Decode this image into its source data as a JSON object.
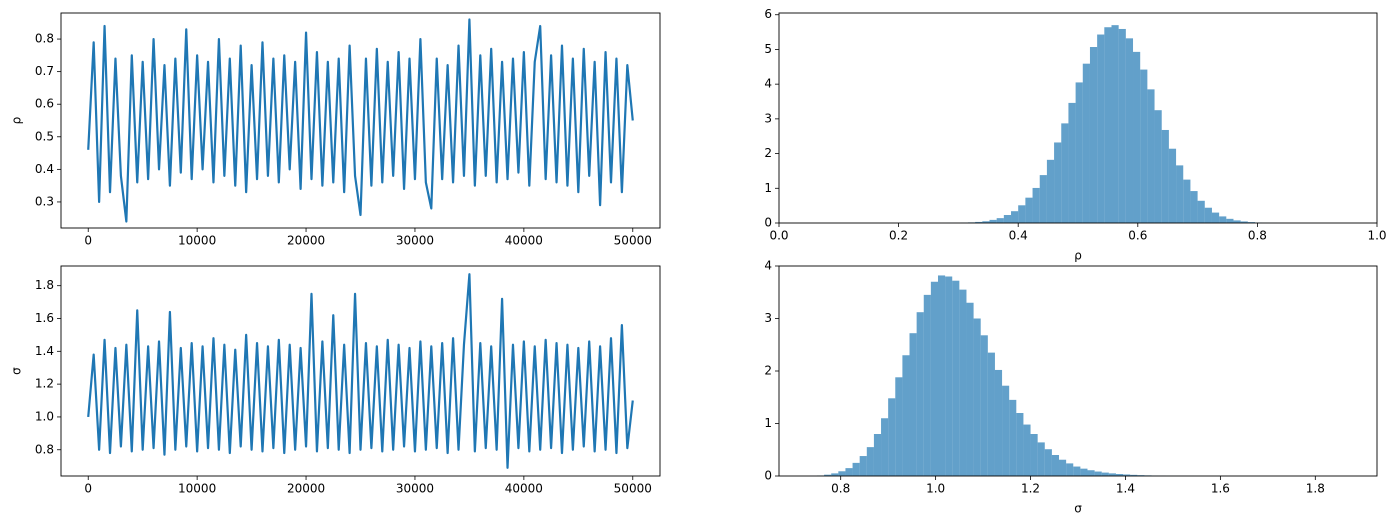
{
  "chart_data": [
    {
      "type": "line",
      "ylabel": "ρ",
      "color": "#1f77b4",
      "x": [
        0,
        500,
        1000,
        1500,
        2000,
        2500,
        3000,
        3500,
        4000,
        4500,
        5000,
        5500,
        6000,
        6500,
        7000,
        7500,
        8000,
        8500,
        9000,
        9500,
        10000,
        10500,
        11000,
        11500,
        12000,
        12500,
        13000,
        13500,
        14000,
        14500,
        15000,
        15500,
        16000,
        16500,
        17000,
        17500,
        18000,
        18500,
        19000,
        19500,
        20000,
        20500,
        21000,
        21500,
        22000,
        22500,
        23000,
        23500,
        24000,
        24500,
        25000,
        25500,
        26000,
        26500,
        27000,
        27500,
        28000,
        28500,
        29000,
        29500,
        30000,
        30500,
        31000,
        31500,
        32000,
        32500,
        33000,
        33500,
        34000,
        34500,
        35000,
        35500,
        36000,
        36500,
        37000,
        37500,
        38000,
        38500,
        39000,
        39500,
        40000,
        40500,
        41000,
        41500,
        42000,
        42500,
        43000,
        43500,
        44000,
        44500,
        45000,
        45500,
        46000,
        46500,
        47000,
        47500,
        48000,
        48500,
        49000,
        49500,
        50000
      ],
      "values": [
        0.46,
        0.79,
        0.3,
        0.84,
        0.33,
        0.74,
        0.38,
        0.24,
        0.75,
        0.36,
        0.73,
        0.37,
        0.8,
        0.4,
        0.72,
        0.35,
        0.74,
        0.39,
        0.83,
        0.37,
        0.75,
        0.4,
        0.73,
        0.36,
        0.8,
        0.38,
        0.74,
        0.35,
        0.78,
        0.33,
        0.72,
        0.37,
        0.79,
        0.38,
        0.74,
        0.36,
        0.75,
        0.4,
        0.73,
        0.34,
        0.82,
        0.37,
        0.76,
        0.35,
        0.73,
        0.36,
        0.74,
        0.33,
        0.78,
        0.38,
        0.26,
        0.74,
        0.35,
        0.77,
        0.36,
        0.73,
        0.38,
        0.76,
        0.34,
        0.74,
        0.37,
        0.8,
        0.36,
        0.28,
        0.74,
        0.37,
        0.72,
        0.36,
        0.78,
        0.38,
        0.86,
        0.35,
        0.75,
        0.38,
        0.77,
        0.36,
        0.73,
        0.37,
        0.74,
        0.39,
        0.76,
        0.35,
        0.73,
        0.84,
        0.37,
        0.75,
        0.36,
        0.78,
        0.35,
        0.74,
        0.33,
        0.77,
        0.38,
        0.73,
        0.29,
        0.76,
        0.36,
        0.74,
        0.33,
        0.72,
        0.55
      ],
      "xlim": [
        -2500,
        52500
      ],
      "xticks": [
        0,
        10000,
        20000,
        30000,
        40000,
        50000
      ],
      "ylim": [
        0.22,
        0.88
      ],
      "yticks": [
        0.3,
        0.4,
        0.5,
        0.6,
        0.7,
        0.8
      ]
    },
    {
      "type": "histogram",
      "xlabel": "ρ",
      "color": "#1f77b4",
      "bins": [
        0.28,
        0.292,
        0.304,
        0.316,
        0.328,
        0.34,
        0.352,
        0.364,
        0.376,
        0.388,
        0.4,
        0.412,
        0.424,
        0.436,
        0.448,
        0.46,
        0.472,
        0.484,
        0.496,
        0.508,
        0.52,
        0.532,
        0.544,
        0.556,
        0.568,
        0.58,
        0.592,
        0.604,
        0.616,
        0.628,
        0.64,
        0.652,
        0.664,
        0.676,
        0.688,
        0.7,
        0.712,
        0.724,
        0.736,
        0.748,
        0.76,
        0.772,
        0.784,
        0.796,
        0.808,
        0.82,
        0.832,
        0.844
      ],
      "counts": [
        0.003,
        0.005,
        0.01,
        0.018,
        0.031,
        0.05,
        0.09,
        0.14,
        0.23,
        0.34,
        0.51,
        0.73,
        1.01,
        1.38,
        1.82,
        2.32,
        2.87,
        3.46,
        4.05,
        4.59,
        5.07,
        5.43,
        5.64,
        5.7,
        5.59,
        5.32,
        4.93,
        4.42,
        3.85,
        3.25,
        2.68,
        2.14,
        1.66,
        1.25,
        0.92,
        0.64,
        0.44,
        0.3,
        0.19,
        0.12,
        0.075,
        0.045,
        0.026,
        0.014,
        0.008,
        0.004,
        0.002
      ],
      "xlim": [
        0,
        1
      ],
      "xticks": [
        {
          "value": 0,
          "label": "0.0"
        },
        0.2,
        0.4,
        0.6,
        0.8,
        {
          "value": 1,
          "label": "1.0"
        }
      ],
      "ylim": [
        0,
        6.05
      ],
      "yticks": [
        0,
        1,
        2,
        3,
        4,
        5,
        6
      ]
    },
    {
      "type": "line",
      "ylabel": "σ",
      "color": "#1f77b4",
      "x": [
        0,
        500,
        1000,
        1500,
        2000,
        2500,
        3000,
        3500,
        4000,
        4500,
        5000,
        5500,
        6000,
        6500,
        7000,
        7500,
        8000,
        8500,
        9000,
        9500,
        10000,
        10500,
        11000,
        11500,
        12000,
        12500,
        13000,
        13500,
        14000,
        14500,
        15000,
        15500,
        16000,
        16500,
        17000,
        17500,
        18000,
        18500,
        19000,
        19500,
        20000,
        20500,
        21000,
        21500,
        22000,
        22500,
        23000,
        23500,
        24000,
        24500,
        25000,
        25500,
        26000,
        26500,
        27000,
        27500,
        28000,
        28500,
        29000,
        29500,
        30000,
        30500,
        31000,
        31500,
        32000,
        32500,
        33000,
        33500,
        34000,
        34500,
        35000,
        35500,
        36000,
        36500,
        37000,
        37500,
        38000,
        38500,
        39000,
        39500,
        40000,
        40500,
        41000,
        41500,
        42000,
        42500,
        43000,
        43500,
        44000,
        44500,
        45000,
        45500,
        46000,
        46500,
        47000,
        47500,
        48000,
        48500,
        49000,
        49500,
        50000
      ],
      "values": [
        1.0,
        1.38,
        0.8,
        1.47,
        0.78,
        1.42,
        0.82,
        1.44,
        0.79,
        1.65,
        0.8,
        1.43,
        0.81,
        1.46,
        0.77,
        1.64,
        0.8,
        1.42,
        0.82,
        1.45,
        0.79,
        1.43,
        0.81,
        1.48,
        0.8,
        1.44,
        0.78,
        1.41,
        0.82,
        1.5,
        0.8,
        1.45,
        0.79,
        1.43,
        0.81,
        1.47,
        0.78,
        1.44,
        0.8,
        1.42,
        0.82,
        1.75,
        0.79,
        1.46,
        0.81,
        1.62,
        0.8,
        1.44,
        0.78,
        1.75,
        0.8,
        1.45,
        0.81,
        1.43,
        0.79,
        1.47,
        0.8,
        1.44,
        0.82,
        1.42,
        0.79,
        1.46,
        0.8,
        1.43,
        0.81,
        1.45,
        0.78,
        1.48,
        0.8,
        1.44,
        1.87,
        0.79,
        1.45,
        0.81,
        1.43,
        0.8,
        1.72,
        0.69,
        1.44,
        0.81,
        1.46,
        0.79,
        1.43,
        0.8,
        1.47,
        0.81,
        1.45,
        0.78,
        1.44,
        0.8,
        1.42,
        0.82,
        1.46,
        0.79,
        1.43,
        0.8,
        1.48,
        0.78,
        1.56,
        0.81,
        1.1
      ],
      "xlim": [
        -2500,
        52500
      ],
      "xticks": [
        0,
        10000,
        20000,
        30000,
        40000,
        50000
      ],
      "ylim": [
        0.64,
        1.92
      ],
      "yticks": [
        0.8,
        {
          "value": 1,
          "label": "1.0"
        },
        1.2,
        1.4,
        1.6,
        1.8
      ]
    },
    {
      "type": "histogram",
      "xlabel": "σ",
      "color": "#1f77b4",
      "bins": [
        0.735,
        0.75,
        0.765,
        0.78,
        0.795,
        0.81,
        0.825,
        0.84,
        0.855,
        0.87,
        0.885,
        0.9,
        0.915,
        0.93,
        0.945,
        0.96,
        0.975,
        0.99,
        1.005,
        1.02,
        1.035,
        1.05,
        1.065,
        1.08,
        1.095,
        1.11,
        1.125,
        1.14,
        1.155,
        1.17,
        1.185,
        1.2,
        1.215,
        1.23,
        1.245,
        1.26,
        1.275,
        1.29,
        1.305,
        1.32,
        1.335,
        1.35,
        1.365,
        1.38,
        1.395,
        1.41,
        1.425,
        1.44,
        1.455,
        1.47,
        1.485,
        1.5,
        1.515,
        1.53,
        1.545,
        1.56,
        1.575
      ],
      "counts": [
        0.003,
        0.01,
        0.025,
        0.05,
        0.09,
        0.15,
        0.25,
        0.38,
        0.55,
        0.8,
        1.1,
        1.48,
        1.88,
        2.3,
        2.72,
        3.12,
        3.45,
        3.7,
        3.82,
        3.8,
        3.72,
        3.55,
        3.3,
        3.0,
        2.68,
        2.35,
        2.02,
        1.72,
        1.45,
        1.2,
        0.98,
        0.8,
        0.64,
        0.51,
        0.4,
        0.31,
        0.24,
        0.18,
        0.14,
        0.11,
        0.085,
        0.065,
        0.05,
        0.038,
        0.029,
        0.022,
        0.016,
        0.012,
        0.009,
        0.007,
        0.005,
        0.004,
        0.003,
        0.002,
        0.0015,
        0.001
      ],
      "xlim": [
        0.67,
        1.93
      ],
      "xticks": [
        0.8,
        {
          "value": 1,
          "label": "1.0"
        },
        1.2,
        1.4,
        1.6,
        1.8
      ],
      "ylim": [
        0,
        4.0
      ],
      "yticks": [
        0,
        1,
        2,
        3,
        4
      ]
    }
  ]
}
